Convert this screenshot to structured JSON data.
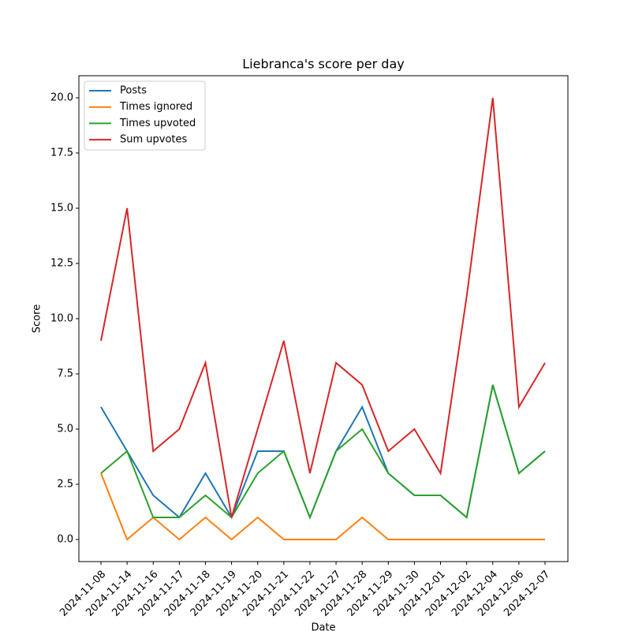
{
  "chart_data": {
    "type": "line",
    "title": "Liebranca's score per day",
    "xlabel": "Date",
    "ylabel": "Score",
    "categories": [
      "2024-11-08",
      "2024-11-14",
      "2024-11-16",
      "2024-11-17",
      "2024-11-18",
      "2024-11-19",
      "2024-11-20",
      "2024-11-21",
      "2024-11-22",
      "2024-11-27",
      "2024-11-28",
      "2024-11-29",
      "2024-11-30",
      "2024-12-01",
      "2024-12-02",
      "2024-12-04",
      "2024-12-06",
      "2024-12-07"
    ],
    "series": [
      {
        "name": "Posts",
        "color": "#1f77b4",
        "values": [
          6,
          4,
          2,
          1,
          3,
          1,
          4,
          4,
          1,
          4,
          6,
          3,
          2,
          2,
          1,
          7,
          3,
          4
        ]
      },
      {
        "name": "Times ignored",
        "color": "#ff7f0e",
        "values": [
          3,
          0,
          1,
          0,
          1,
          0,
          1,
          0,
          0,
          0,
          1,
          0,
          0,
          0,
          0,
          0,
          0,
          0
        ]
      },
      {
        "name": "Times upvoted",
        "color": "#2ca02c",
        "values": [
          3,
          4,
          1,
          1,
          2,
          1,
          3,
          4,
          1,
          4,
          5,
          3,
          2,
          2,
          1,
          7,
          3,
          4
        ]
      },
      {
        "name": "Sum upvotes",
        "color": "#d62728",
        "values": [
          9,
          15,
          4,
          5,
          8,
          1,
          5,
          9,
          3,
          8,
          7,
          4,
          5,
          3,
          11,
          20,
          6,
          8
        ]
      }
    ],
    "ylim": [
      -1,
      21
    ],
    "yticks": [
      {
        "value": 0,
        "label": "0.0"
      },
      {
        "value": 2.5,
        "label": "2.5"
      },
      {
        "value": 5,
        "label": "5.0"
      },
      {
        "value": 7.5,
        "label": "7.5"
      },
      {
        "value": 10,
        "label": "10.0"
      },
      {
        "value": 12.5,
        "label": "12.5"
      },
      {
        "value": 15,
        "label": "15.0"
      },
      {
        "value": 17.5,
        "label": "17.5"
      },
      {
        "value": 20,
        "label": "20.0"
      }
    ],
    "legend": "upper left"
  }
}
